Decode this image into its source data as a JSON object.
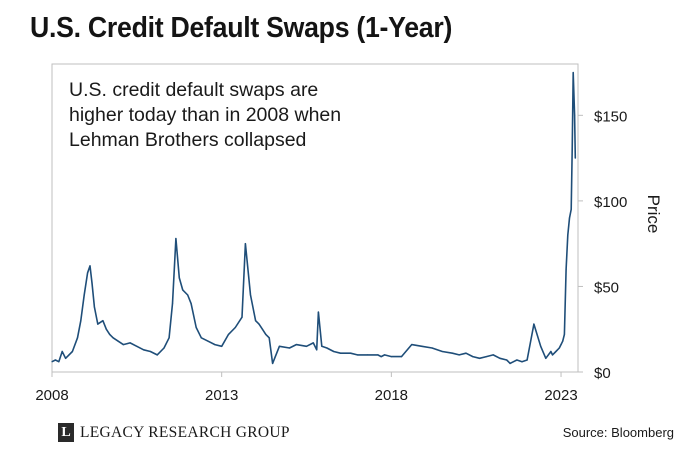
{
  "title": "U.S. Credit Default Swaps (1-Year)",
  "annotation": {
    "line1": "U.S. credit default swaps are",
    "line2": "higher today than in 2008 when",
    "line3": "Lehman Brothers collapsed"
  },
  "footer": {
    "logo_letter": "L",
    "brand": "LEGACY RESEARCH GROUP",
    "source": "Source: Bloomberg"
  },
  "colors": {
    "line": "#1f4e79",
    "frame": "#bfbfbf",
    "text": "#1a1a1a"
  },
  "chart_data": {
    "type": "line",
    "title": "U.S. Credit Default Swaps (1-Year)",
    "ylabel": "Price",
    "xlabel": "",
    "ylim": [
      0,
      180
    ],
    "xlim": [
      2008.0,
      2023.5
    ],
    "yticks": [
      0,
      50,
      100,
      150
    ],
    "ytick_labels": [
      "$0",
      "$50",
      "$100",
      "$150"
    ],
    "xticks": [
      2008,
      2013,
      2018,
      2023
    ],
    "xtick_labels": [
      "2008",
      "2013",
      "2018",
      "2023"
    ],
    "y_axis_position": "right",
    "grid": false,
    "series": [
      {
        "x": [
          2008.0,
          2008.1,
          2008.2,
          2008.3,
          2008.4,
          2008.5,
          2008.6,
          2008.75,
          2008.85,
          2008.95,
          2009.05,
          2009.12,
          2009.18,
          2009.25,
          2009.35,
          2009.5,
          2009.6,
          2009.7,
          2009.8,
          2009.95,
          2010.1,
          2010.3,
          2010.5,
          2010.7,
          2010.9,
          2011.1,
          2011.3,
          2011.45,
          2011.55,
          2011.65,
          2011.75,
          2011.85,
          2012.0,
          2012.1,
          2012.25,
          2012.4,
          2012.6,
          2012.8,
          2013.0,
          2013.2,
          2013.4,
          2013.6,
          2013.7,
          2013.8,
          2013.85,
          2013.95,
          2014.0,
          2014.1,
          2014.2,
          2014.3,
          2014.4,
          2014.5,
          2014.7,
          2015.0,
          2015.2,
          2015.5,
          2015.7,
          2015.8,
          2015.85,
          2015.95,
          2016.1,
          2016.3,
          2016.5,
          2016.8,
          2017.0,
          2017.3,
          2017.6,
          2017.7,
          2017.8,
          2018.0,
          2018.3,
          2018.6,
          2018.9,
          2019.2,
          2019.5,
          2019.8,
          2020.0,
          2020.2,
          2020.4,
          2020.6,
          2020.8,
          2021.0,
          2021.2,
          2021.4,
          2021.5,
          2021.6,
          2021.7,
          2021.85,
          2022.0,
          2022.2,
          2022.4,
          2022.55,
          2022.7,
          2022.75,
          2022.85,
          2022.95,
          2023.0,
          2023.05,
          2023.1,
          2023.15,
          2023.2,
          2023.25,
          2023.3,
          2023.33,
          2023.36,
          2023.4,
          2023.42
        ],
        "y": [
          6,
          7,
          6,
          12,
          8,
          10,
          12,
          20,
          30,
          45,
          58,
          62,
          52,
          38,
          28,
          30,
          25,
          22,
          20,
          18,
          16,
          17,
          15,
          13,
          12,
          10,
          14,
          20,
          40,
          78,
          55,
          48,
          45,
          40,
          26,
          20,
          18,
          16,
          15,
          22,
          26,
          32,
          75,
          55,
          45,
          35,
          30,
          28,
          25,
          22,
          20,
          5,
          15,
          14,
          16,
          15,
          17,
          13,
          35,
          15,
          14,
          12,
          11,
          11,
          10,
          10,
          10,
          9,
          10,
          9,
          9,
          16,
          15,
          14,
          12,
          11,
          10,
          11,
          9,
          8,
          9,
          10,
          8,
          7,
          5,
          6,
          7,
          6,
          7,
          28,
          15,
          8,
          12,
          10,
          12,
          14,
          16,
          18,
          22,
          60,
          80,
          90,
          95,
          130,
          175,
          150,
          125
        ]
      }
    ]
  }
}
